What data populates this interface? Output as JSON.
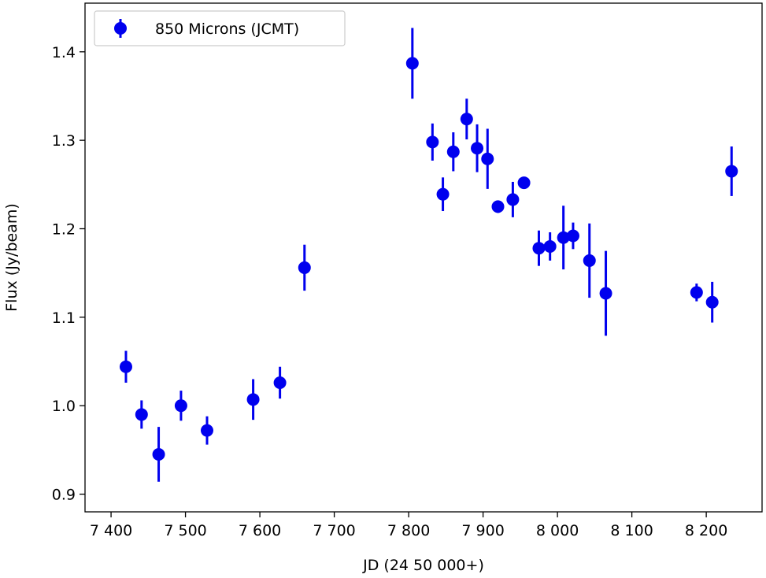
{
  "chart_data": {
    "type": "scatter",
    "xlabel": "JD (24 50 000+)",
    "ylabel": "Flux (Jy/beam)",
    "xlim": [
      7365,
      8275
    ],
    "ylim": [
      0.88,
      1.455
    ],
    "xticks": [
      7400,
      7500,
      7600,
      7700,
      7800,
      7900,
      8000,
      8100,
      8200
    ],
    "xtick_labels": [
      "7 400",
      "7 500",
      "7 600",
      "7 700",
      "7 800",
      "7 900",
      "8 000",
      "8 100",
      "8 200"
    ],
    "yticks": [
      0.9,
      1.0,
      1.1,
      1.2,
      1.3,
      1.4
    ],
    "ytick_labels": [
      "0.9",
      "1.0",
      "1.1",
      "1.2",
      "1.3",
      "1.4"
    ],
    "grid": false,
    "legend_position": "top-left",
    "series": [
      {
        "name": "850 Microns (JCMT)",
        "color": "#0000ee",
        "marker": "circle",
        "points": [
          {
            "x": 7420,
            "y": 1.044,
            "err": 0.018
          },
          {
            "x": 7441,
            "y": 0.99,
            "err": 0.016
          },
          {
            "x": 7464,
            "y": 0.945,
            "err": 0.031
          },
          {
            "x": 7494,
            "y": 1.0,
            "err": 0.017
          },
          {
            "x": 7529,
            "y": 0.972,
            "err": 0.016
          },
          {
            "x": 7591,
            "y": 1.007,
            "err": 0.023
          },
          {
            "x": 7627,
            "y": 1.026,
            "err": 0.018
          },
          {
            "x": 7660,
            "y": 1.156,
            "err": 0.026
          },
          {
            "x": 7805,
            "y": 1.387,
            "err": 0.04
          },
          {
            "x": 7832,
            "y": 1.298,
            "err": 0.021
          },
          {
            "x": 7846,
            "y": 1.239,
            "err": 0.019
          },
          {
            "x": 7860,
            "y": 1.287,
            "err": 0.022
          },
          {
            "x": 7878,
            "y": 1.324,
            "err": 0.023
          },
          {
            "x": 7892,
            "y": 1.291,
            "err": 0.027
          },
          {
            "x": 7906,
            "y": 1.279,
            "err": 0.034
          },
          {
            "x": 7920,
            "y": 1.225,
            "err": 0.007
          },
          {
            "x": 7940,
            "y": 1.233,
            "err": 0.02
          },
          {
            "x": 7955,
            "y": 1.252,
            "err": 0.004
          },
          {
            "x": 7975,
            "y": 1.178,
            "err": 0.02
          },
          {
            "x": 7990,
            "y": 1.18,
            "err": 0.016
          },
          {
            "x": 8008,
            "y": 1.19,
            "err": 0.036
          },
          {
            "x": 8021,
            "y": 1.192,
            "err": 0.015
          },
          {
            "x": 8043,
            "y": 1.164,
            "err": 0.042
          },
          {
            "x": 8065,
            "y": 1.127,
            "err": 0.048
          },
          {
            "x": 8187,
            "y": 1.128,
            "err": 0.01
          },
          {
            "x": 8208,
            "y": 1.117,
            "err": 0.023
          },
          {
            "x": 8234,
            "y": 1.265,
            "err": 0.028
          }
        ]
      }
    ]
  }
}
